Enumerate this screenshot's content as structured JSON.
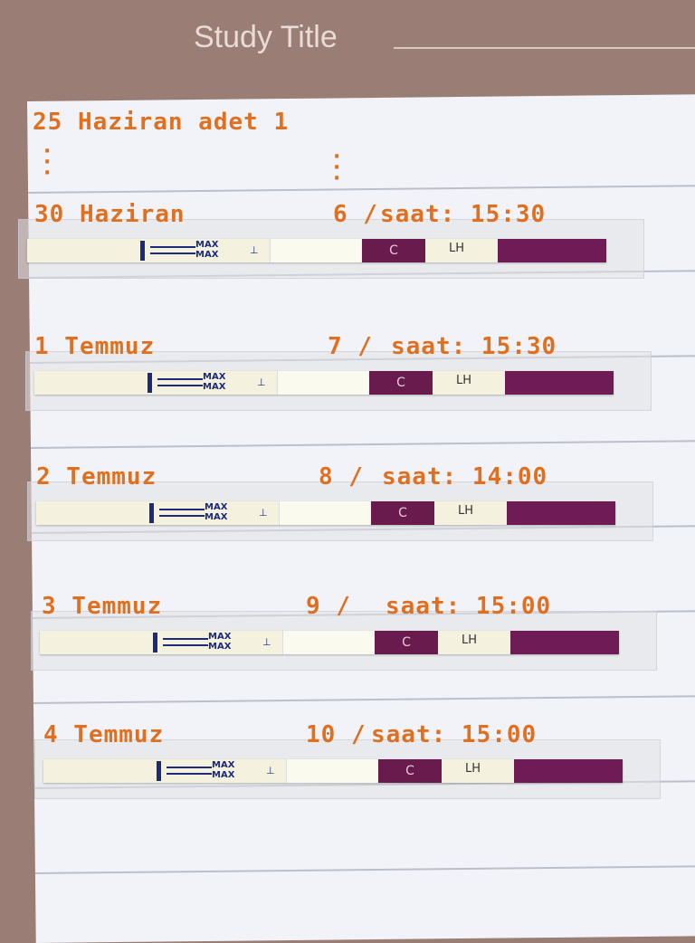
{
  "header": {
    "title": "Study Title"
  },
  "notes": {
    "first_line": "25 Haziran adet 1",
    "entries": [
      {
        "date": "30 Haziran",
        "day": "6 /",
        "time": "saat: 15:30"
      },
      {
        "date": "1 Temmuz",
        "day": "7 /",
        "time": "saat: 15:30"
      },
      {
        "date": "2 Temmuz",
        "day": "8 /",
        "time": "saat: 14:00"
      },
      {
        "date": "3 Temmuz",
        "day": "9 /",
        "time": "saat: 15:00"
      },
      {
        "date": "4 Temmuz",
        "day": "10 /",
        "time": "saat: 15:00"
      }
    ]
  },
  "strip": {
    "max_label": "MAX",
    "c_label": "C",
    "lh_label": "LH"
  },
  "colors": {
    "ink": "#e0701f",
    "test_band": "#6a1b4d",
    "background": "#9a7d74"
  }
}
